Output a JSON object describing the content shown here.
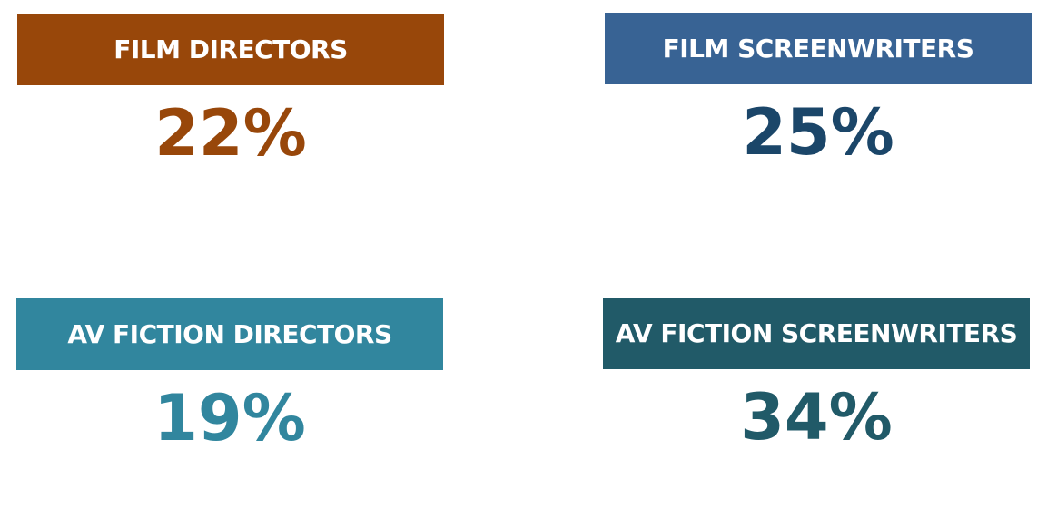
{
  "cards": [
    {
      "label": "FILM DIRECTORS",
      "value": "22%",
      "header_color": "#98470a",
      "value_color": "#98470a"
    },
    {
      "label": "FILM SCREENWRITERS",
      "value": "25%",
      "header_color": "#386394",
      "value_color": "#1b4669"
    },
    {
      "label": "AV FICTION DIRECTORS",
      "value": "19%",
      "header_color": "#31869e",
      "value_color": "#31869e"
    },
    {
      "label": "AV FICTION SCREENWRITERS",
      "value": "34%",
      "header_color": "#215a68",
      "value_color": "#215a68"
    }
  ]
}
